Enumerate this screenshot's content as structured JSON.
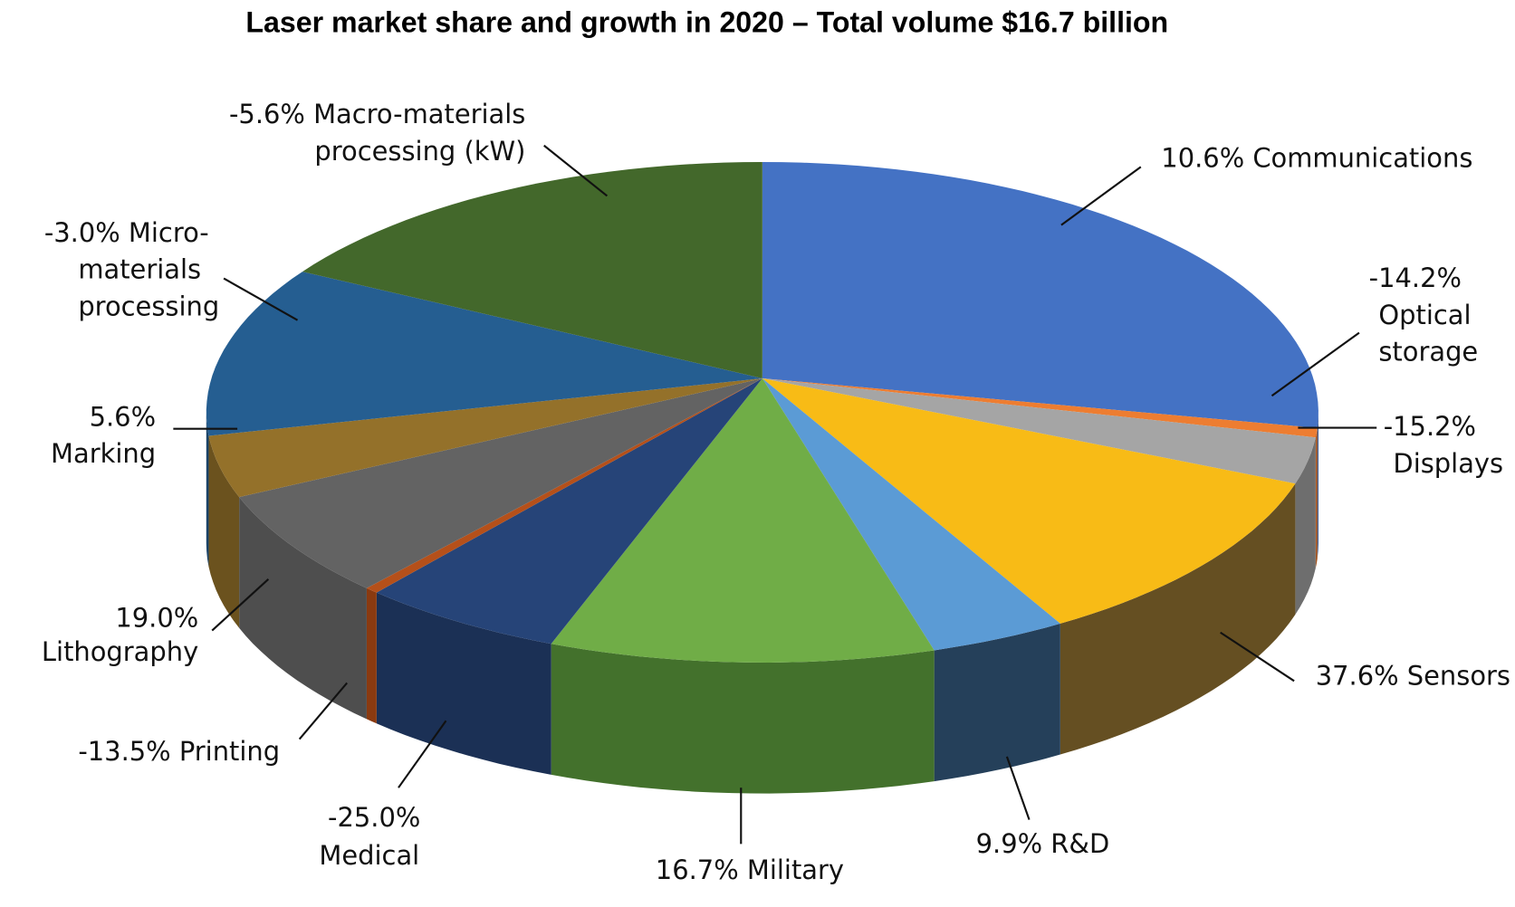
{
  "chart_data": {
    "type": "pie",
    "style": "3d-exploded-none",
    "title": "Laser market share and growth in 2020 – Total volume $16.7 billion",
    "slices": [
      {
        "name": "Communications",
        "growth": "10.6%",
        "share_estimate": 26.0,
        "color": "#4472C4",
        "side": "#2F4F8A"
      },
      {
        "name": "Optical storage",
        "growth": "-14.2%",
        "share_estimate": 0.6,
        "color": "#ED7D31",
        "side": "#A35520"
      },
      {
        "name": "Displays",
        "growth": "-15.2%",
        "share_estimate": 3.0,
        "color": "#A5A5A5",
        "side": "#6E6E6E"
      },
      {
        "name": "Sensors",
        "growth": "37.6%",
        "share_estimate": 11.4,
        "color": "#F8BB16",
        "side": "#654F22"
      },
      {
        "name": "R&D",
        "growth": "9.9%",
        "share_estimate": 4.0,
        "color": "#5B9BD5",
        "side": "#25405A"
      },
      {
        "name": "Military",
        "growth": "16.7%",
        "share_estimate": 11.2,
        "color": "#70AD47",
        "side": "#43712C"
      },
      {
        "name": "Medical",
        "growth": "-25.0%",
        "share_estimate": 6.0,
        "color": "#264478",
        "side": "#1B3055"
      },
      {
        "name": "Printing",
        "growth": "-13.5%",
        "share_estimate": 0.4,
        "color": "#B5501A",
        "side": "#8A3A10"
      },
      {
        "name": "Lithography",
        "growth": "19.0%",
        "share_estimate": 6.9,
        "color": "#636363",
        "side": "#4E4E4E"
      },
      {
        "name": "Marking",
        "growth": "5.6%",
        "share_estimate": 4.0,
        "color": "#94712A",
        "side": "#6B521E"
      },
      {
        "name": "Micro-materials processing",
        "growth": "-3.0%",
        "share_estimate": 11.0,
        "color": "#255E91",
        "side": "#1A4368"
      },
      {
        "name": "Macro-materials processing (kW)",
        "growth": "-5.6%",
        "share_estimate": 15.5,
        "color": "#43682B",
        "side": "#2F4A1E"
      }
    ]
  },
  "labels": {
    "macro": [
      "-5.6% Macro-materials",
      "processing (kW)"
    ],
    "comm": [
      "10.6% Communications"
    ],
    "optical": [
      "-14.2%",
      "Optical",
      "storage"
    ],
    "displays": [
      "-15.2%",
      "Displays"
    ],
    "sensors": [
      "37.6% Sensors"
    ],
    "rd": [
      "9.9% R&D"
    ],
    "military": [
      "16.7% Military"
    ],
    "medical": [
      "-25.0%",
      "Medical"
    ],
    "printing": [
      "-13.5% Printing"
    ],
    "litho": [
      "19.0%",
      "Lithography"
    ],
    "marking": [
      "5.6%",
      "Marking"
    ],
    "micro": [
      "-3.0% Micro-",
      "materials",
      "processing"
    ]
  }
}
